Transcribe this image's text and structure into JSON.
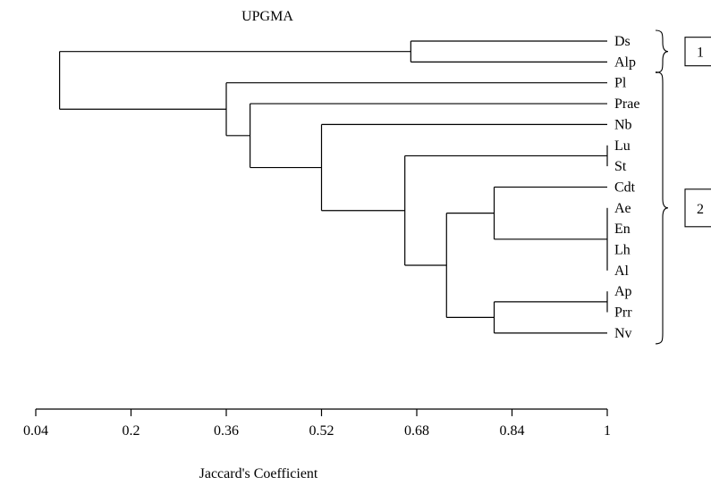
{
  "title": "UPGMA",
  "xlabel": "Jaccard's Coefficient",
  "axis": {
    "min": 0.04,
    "max": 1,
    "ticks": [
      0.04,
      0.2,
      0.36,
      0.52,
      0.68,
      0.84,
      1
    ],
    "tick_labels": [
      "0.04",
      "0.2",
      "0.36",
      "0.52",
      "0.68",
      "0.84",
      "1"
    ]
  },
  "leaves": [
    "Ds",
    "Alp",
    "Pl",
    "Prae",
    "Nb",
    "Lu",
    "St",
    "Cdt",
    "Ae",
    "En",
    "Lh",
    "Al",
    "Ap",
    "Prr",
    "Nv"
  ],
  "merges": [
    {
      "id": "n1",
      "height": 1.0,
      "children": [
        "Lu",
        "St"
      ]
    },
    {
      "id": "n2",
      "height": 1.0,
      "children": [
        "Ae",
        "En",
        "Lh",
        "Al"
      ]
    },
    {
      "id": "n3",
      "height": 1.0,
      "children": [
        "Ap",
        "Prr"
      ]
    },
    {
      "id": "n4",
      "height": 0.81,
      "children": [
        "Cdt",
        "n2"
      ]
    },
    {
      "id": "n5",
      "height": 0.81,
      "children": [
        "n3",
        "Nv"
      ]
    },
    {
      "id": "n6",
      "height": 0.73,
      "children": [
        "n4",
        "n5"
      ]
    },
    {
      "id": "n7",
      "height": 0.66,
      "children": [
        "n1",
        "n6"
      ]
    },
    {
      "id": "n8",
      "height": 0.52,
      "children": [
        "Nb",
        "n7"
      ]
    },
    {
      "id": "n9",
      "height": 0.4,
      "children": [
        "Prae",
        "n8"
      ]
    },
    {
      "id": "n10",
      "height": 0.36,
      "children": [
        "Pl",
        "n9"
      ]
    },
    {
      "id": "n11",
      "height": 0.67,
      "children": [
        "Ds",
        "Alp"
      ]
    },
    {
      "id": "root",
      "height": 0.08,
      "children": [
        "n11",
        "n10"
      ]
    }
  ],
  "groups": [
    {
      "label": "1",
      "from": "Ds",
      "to": "Alp"
    },
    {
      "label": "2",
      "from": "Pl",
      "to": "Nv"
    }
  ]
}
